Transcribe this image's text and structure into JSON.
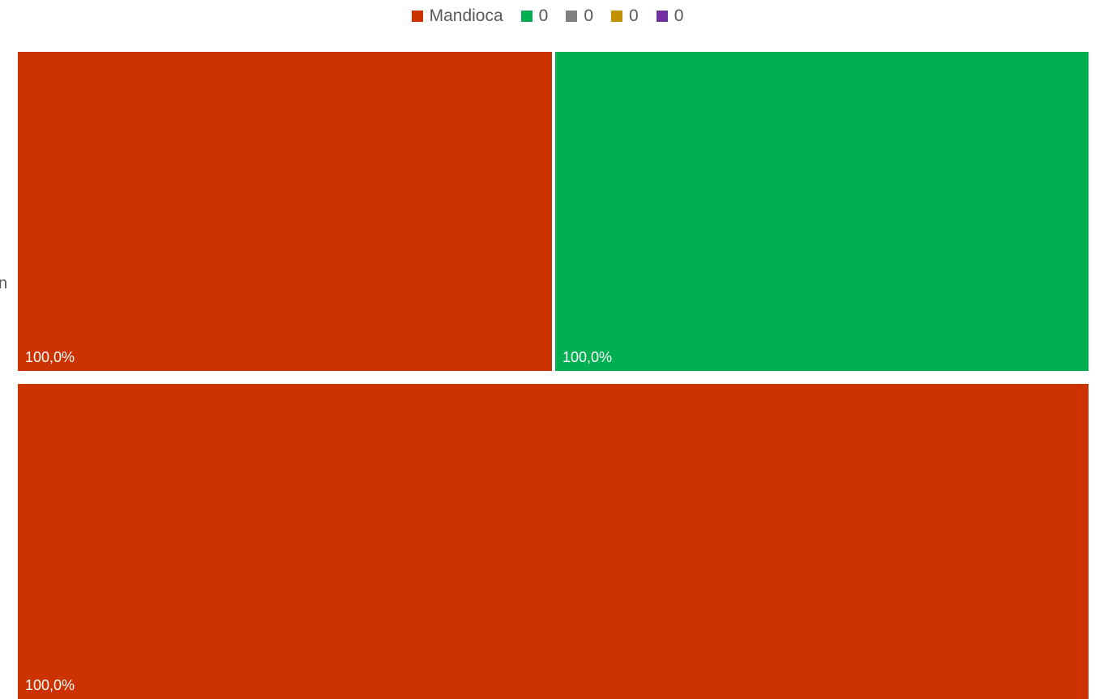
{
  "chart_data": {
    "type": "treemap",
    "title": "",
    "legend": {
      "placement": "top-center",
      "items": [
        {
          "label": "Mandioca",
          "color": "#CC3300"
        },
        {
          "label": "0",
          "color": "#00B050"
        },
        {
          "label": "0",
          "color": "#7F7F7F"
        },
        {
          "label": "0",
          "color": "#C09100"
        },
        {
          "label": "0",
          "color": "#7030A0"
        }
      ]
    },
    "edge_text": "n",
    "tiles": [
      {
        "series": "Mandioca",
        "color": "#CC3300",
        "share": 0.25,
        "label": "100,0%"
      },
      {
        "series": "0",
        "color": "#00B050",
        "share": 0.25,
        "label": "100,0%"
      },
      {
        "series": "Mandioca",
        "color": "#CC3300",
        "share": 0.5,
        "label": "100,0%"
      }
    ]
  }
}
